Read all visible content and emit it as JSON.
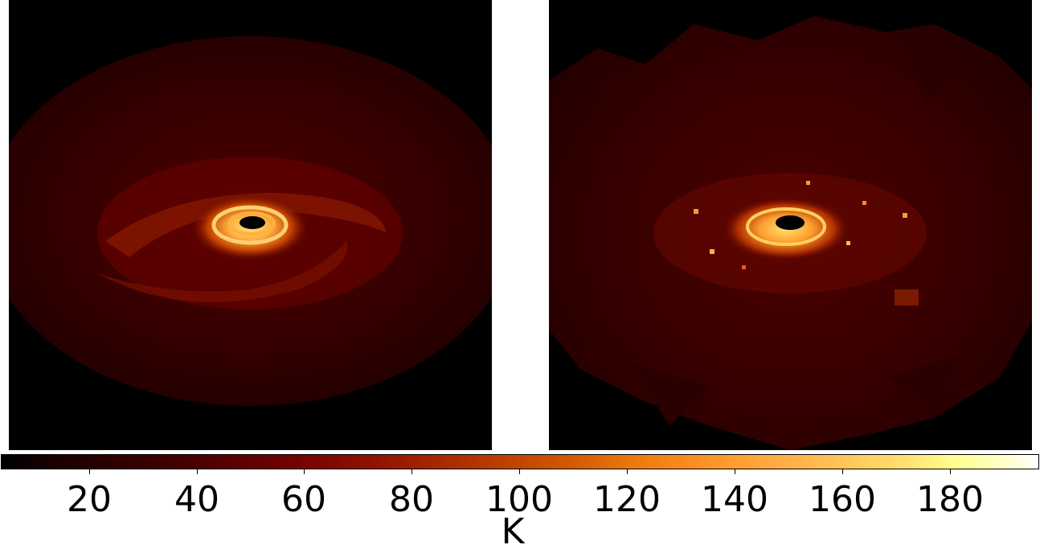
{
  "colorbar": {
    "unit": "K",
    "ticks": [
      "20",
      "40",
      "60",
      "80",
      "100",
      "120",
      "140",
      "160",
      "180"
    ],
    "colormap": "afmhot"
  },
  "panels": [
    {
      "name": "left-disk-image"
    },
    {
      "name": "right-disk-image"
    }
  ]
}
